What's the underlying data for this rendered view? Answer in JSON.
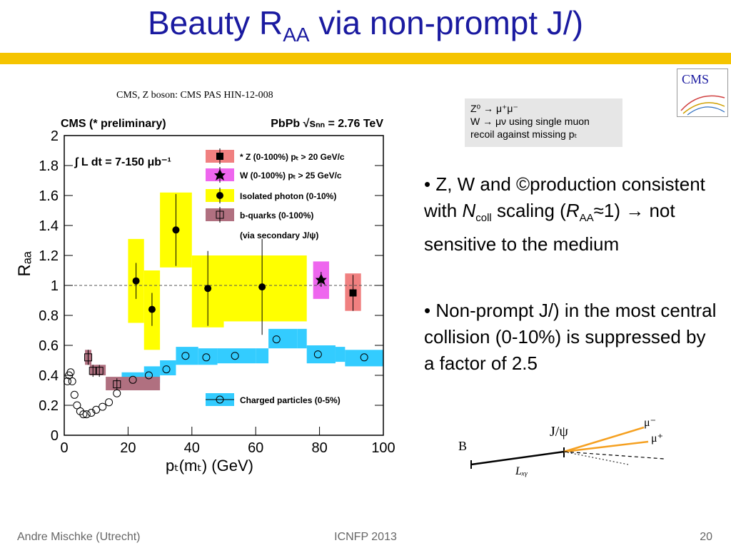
{
  "slide": {
    "title_main": "Beauty R",
    "title_sub": "AA",
    "title_rest": " via non-prompt J/)",
    "source": "CMS, Z boson: CMS PAS HIN-12-008",
    "logo_text": "CMS",
    "note": {
      "line1": "Z⁰ → μ⁺μ⁻",
      "line2": "W → μν using single muon",
      "line3": "recoil against missing pₜ"
    },
    "bullet1": {
      "a": "• Z, W and ©production consistent with ",
      "b": "N",
      "c": "coll",
      "d": " scaling (",
      "e": "R",
      "f": "AA",
      "g": "≈1) → not sensitive to the medium"
    },
    "bullet2": "• Non-prompt J/)  in the most central collision (0-10%) is suppressed by a factor of 2.5",
    "decay": {
      "b": "B",
      "jpsi": "J/ψ",
      "mu_minus": "μ⁻",
      "mu_plus": "μ⁺",
      "lxy": "Lₓᵧ"
    },
    "footer": {
      "author": "Andre Mischke (Utrecht)",
      "conf": "ICNFP 2013",
      "page": "20"
    }
  },
  "chart_data": {
    "type": "scatter",
    "header_left": "CMS (* preliminary)",
    "header_right": "PbPb √sₙₙ = 2.76 TeV",
    "lumi": "∫ L dt = 7-150 μb⁻¹",
    "xlabel": "pₜ(mₜ) (GeV)",
    "ylabel": "Rₐₐ",
    "xlim": [
      0,
      100
    ],
    "ylim": [
      0,
      2
    ],
    "xticks": [
      "0",
      "20",
      "40",
      "60",
      "80",
      "100"
    ],
    "yticks": [
      "0",
      "0.2",
      "0.4",
      "0.6",
      "0.8",
      "1",
      "1.2",
      "1.4",
      "1.6",
      "1.8",
      "2"
    ],
    "reference_line": 1,
    "colors": {
      "z": "#f08080",
      "w": "#ee66ee",
      "photon": "#ffff00",
      "bquark": "#b07080",
      "charged": "#33ccff"
    },
    "series": [
      {
        "name": "* Z  (0-100%)  pₜ > 20 GeV/c",
        "marker": "square-filled",
        "color": "#f08080",
        "points": [
          {
            "x": 90.5,
            "y": 0.95,
            "err": 0.12,
            "syst": [
              88,
              93,
              0.83,
              1.08
            ]
          }
        ]
      },
      {
        "name": "W  (0-100%)  pₜ > 25 GeV/c",
        "marker": "star",
        "color": "#ee66ee",
        "points": [
          {
            "x": 80.5,
            "y": 1.04,
            "err": 0.05,
            "syst": [
              78,
              83,
              0.91,
              1.16
            ]
          }
        ]
      },
      {
        "name": "Isolated photon  (0-10%)",
        "marker": "circle-filled",
        "color": "#ffff00",
        "points": [
          {
            "x": 22.5,
            "y": 1.03,
            "err": 0.12,
            "syst": [
              20,
              25,
              0.75,
              1.31
            ]
          },
          {
            "x": 27.5,
            "y": 0.84,
            "err": 0.11,
            "syst": [
              25,
              30,
              0.57,
              1.1
            ]
          },
          {
            "x": 35,
            "y": 1.37,
            "err": 0.24,
            "syst": [
              30,
              40,
              1.12,
              1.62
            ]
          },
          {
            "x": 45,
            "y": 0.98,
            "err": 0.25,
            "syst": [
              40,
              50,
              0.72,
              1.2
            ]
          },
          {
            "x": 62,
            "y": 0.99,
            "err": 0.32,
            "syst": [
              50,
              76,
              0.76,
              1.2
            ]
          }
        ]
      },
      {
        "name": "b-quarks (0-100%)",
        "marker": "square-open",
        "color": "#b07080",
        "points": [
          {
            "x": 7.5,
            "y": 0.52,
            "err": 0.05,
            "syst": [
              6.5,
              8.5,
              0.47,
              0.57
            ]
          },
          {
            "x": 9,
            "y": 0.43,
            "err": 0.04,
            "syst": [
              8,
              10.5,
              0.4,
              0.47
            ]
          },
          {
            "x": 11,
            "y": 0.43,
            "err": 0.04,
            "syst": [
              10,
              13,
              0.4,
              0.47
            ]
          },
          {
            "x": 16.5,
            "y": 0.34,
            "err": 0.04,
            "syst": [
              13,
              30,
              0.3,
              0.39
            ]
          }
        ]
      },
      {
        "name": "Charged particles (0-5%)",
        "marker": "circle-open",
        "color": "#33ccff",
        "points": [
          {
            "x": 1,
            "y": 0.36
          },
          {
            "x": 1.5,
            "y": 0.4
          },
          {
            "x": 2,
            "y": 0.42
          },
          {
            "x": 2.5,
            "y": 0.36
          },
          {
            "x": 3.2,
            "y": 0.27
          },
          {
            "x": 4,
            "y": 0.2
          },
          {
            "x": 5,
            "y": 0.16
          },
          {
            "x": 6,
            "y": 0.14
          },
          {
            "x": 7,
            "y": 0.14
          },
          {
            "x": 8.5,
            "y": 0.15
          },
          {
            "x": 10,
            "y": 0.17
          },
          {
            "x": 12,
            "y": 0.19
          },
          {
            "x": 14,
            "y": 0.22
          },
          {
            "x": 16.5,
            "y": 0.28
          },
          {
            "x": 21.5,
            "y": 0.37
          },
          {
            "x": 26.5,
            "y": 0.4
          },
          {
            "x": 32,
            "y": 0.44
          },
          {
            "x": 38,
            "y": 0.53
          },
          {
            "x": 44.5,
            "y": 0.52
          },
          {
            "x": 53.5,
            "y": 0.53
          },
          {
            "x": 66.5,
            "y": 0.64
          },
          {
            "x": 79.5,
            "y": 0.54
          },
          {
            "x": 94,
            "y": 0.52
          }
        ],
        "band": [
          [
            18,
            0.32,
            0.42
          ],
          [
            25,
            0.35,
            0.46
          ],
          [
            30,
            0.4,
            0.5
          ],
          [
            35,
            0.47,
            0.59
          ],
          [
            42,
            0.47,
            0.58
          ],
          [
            48,
            0.48,
            0.58
          ],
          [
            60,
            0.48,
            0.58
          ],
          [
            64,
            0.58,
            0.71
          ],
          [
            73,
            0.58,
            0.71
          ],
          [
            76,
            0.48,
            0.6
          ],
          [
            85,
            0.49,
            0.59
          ],
          [
            88,
            0.46,
            0.57
          ],
          [
            100,
            0.46,
            0.57
          ]
        ]
      }
    ],
    "legend_note": "(via secondary J/ψ)"
  }
}
